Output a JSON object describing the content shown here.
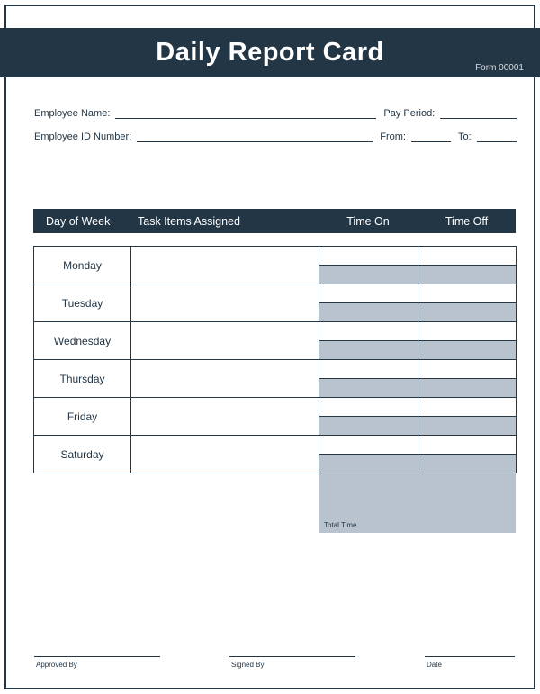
{
  "header": {
    "title": "Daily Report Card",
    "form_number": "Form 00001"
  },
  "info": {
    "employee_name_label": "Employee Name:",
    "pay_period_label": "Pay Period:",
    "employee_id_label": "Employee ID Number:",
    "from_label": "From:",
    "to_label": "To:"
  },
  "table": {
    "headers": {
      "day": "Day of Week",
      "tasks": "Task Items Assigned",
      "time_on": "Time On",
      "time_off": "Time Off"
    },
    "days": [
      "Monday",
      "Tuesday",
      "Wednesday",
      "Thursday",
      "Friday",
      "Saturday"
    ],
    "total_label": "Total Time",
    "columns": {
      "day_width": 108,
      "task_width": 209,
      "time_on_width": 110,
      "time_off_width": 109
    },
    "colors": {
      "header_bg": "#233646",
      "header_text": "#ffffff",
      "shade_bg": "#b9c3ce",
      "border": "#263745",
      "text": "#233646"
    }
  },
  "signatures": {
    "approved": "Approved By",
    "signed": "Signed By",
    "date": "Date"
  },
  "colors": {
    "primary": "#233646",
    "shade": "#b9c3ce",
    "background": "#ffffff"
  }
}
